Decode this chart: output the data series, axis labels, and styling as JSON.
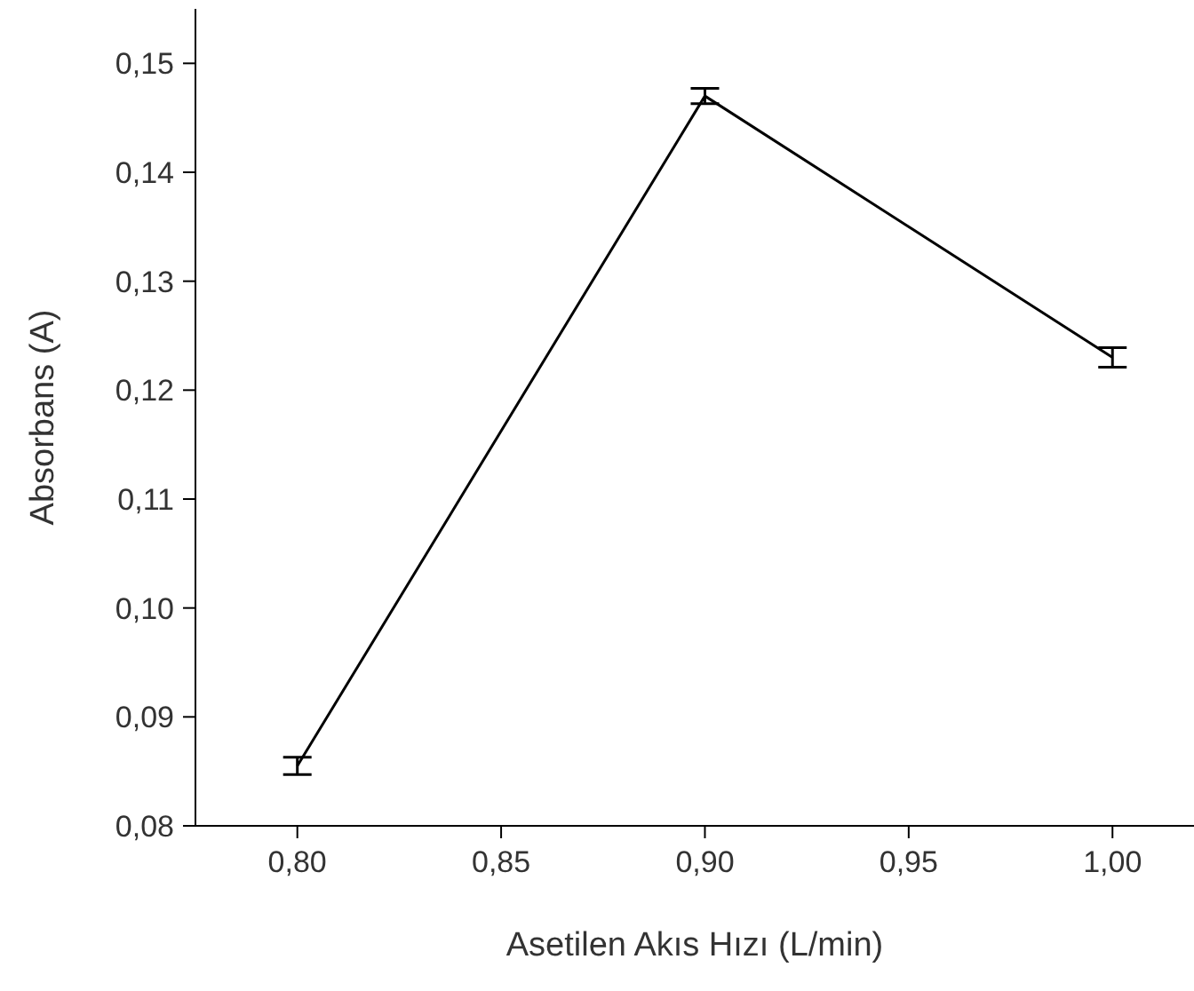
{
  "chart_data": {
    "type": "line",
    "xlabel": "Asetilen Akıs Hızı (L/min)",
    "ylabel": "Absorbans (A)",
    "x": [
      0.8,
      0.9,
      1.0
    ],
    "series": [
      {
        "color": "#000000",
        "values": [
          0.0855,
          0.147,
          0.123
        ],
        "errors": [
          0.0008,
          0.0007,
          0.0009
        ]
      }
    ],
    "xlim": [
      0.775,
      1.02
    ],
    "xticks": [
      {
        "value": 0.8,
        "label": "0,80"
      },
      {
        "value": 0.85,
        "label": "0,85"
      },
      {
        "value": 0.9,
        "label": "0,90"
      },
      {
        "value": 0.95,
        "label": "0,95"
      },
      {
        "value": 1.0,
        "label": "1,00"
      }
    ],
    "ylim": [
      0.08,
      0.155
    ],
    "yticks": [
      {
        "value": 0.08,
        "label": "0,08"
      },
      {
        "value": 0.09,
        "label": "0,09"
      },
      {
        "value": 0.1,
        "label": "0,10"
      },
      {
        "value": 0.11,
        "label": "0,11"
      },
      {
        "value": 0.12,
        "label": "0,12"
      },
      {
        "value": 0.13,
        "label": "0,13"
      },
      {
        "value": 0.14,
        "label": "0,14"
      },
      {
        "value": 0.15,
        "label": "0,15"
      }
    ],
    "grid": false,
    "marker": "none",
    "line_style": "solid"
  }
}
